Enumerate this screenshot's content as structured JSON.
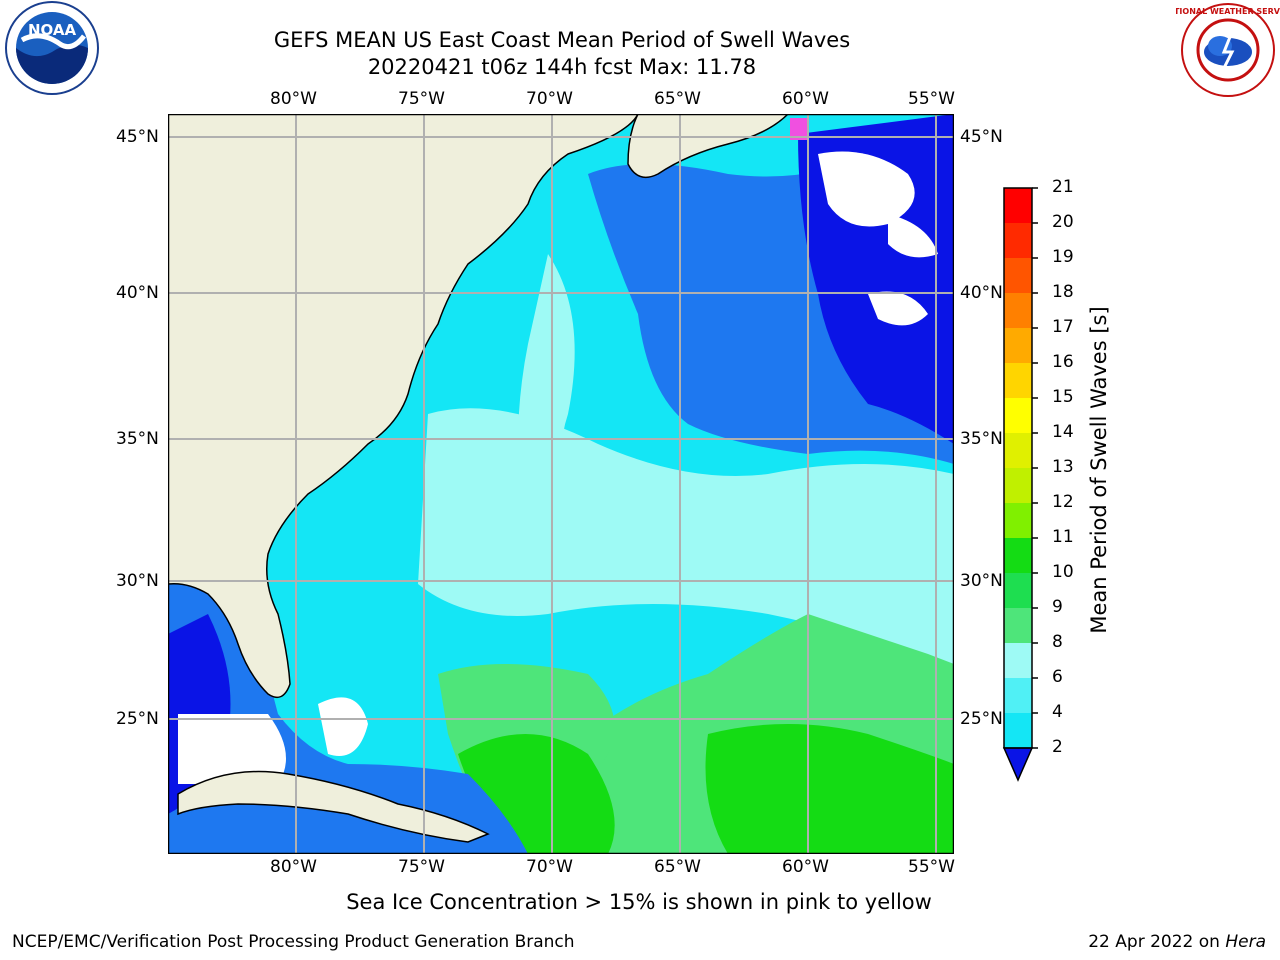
{
  "header": {
    "title_line1": "GEFS MEAN US East Coast Mean Period of Swell Waves",
    "title_line2": "20220421 t06z 144h fcst   Max: 11.78"
  },
  "logos": {
    "left": {
      "name": "noaa-logo",
      "text": "NOAA"
    },
    "right": {
      "name": "nws-logo",
      "text": "NATIONAL WEATHER SERVICE"
    }
  },
  "map": {
    "lon_labels_top": [
      "80°W",
      "75°W",
      "70°W",
      "65°W",
      "60°W",
      "55°W"
    ],
    "lon_labels_bottom": [
      "80°W",
      "75°W",
      "70°W",
      "65°W",
      "60°W",
      "55°W"
    ],
    "lat_labels_left": [
      "45°N",
      "40°N",
      "35°N",
      "30°N",
      "25°N"
    ],
    "lat_labels_right": [
      "45°N",
      "40°N",
      "35°N",
      "30°N",
      "25°N"
    ],
    "colors": {
      "land": "#efefdc",
      "grid": "#b0b0b0",
      "dark_blue": "#0a14e6",
      "blue": "#1e78f0",
      "cyan": "#14e6f5",
      "light_cyan": "#9efaf5",
      "light_green": "#4ee57a",
      "green": "#14dc14",
      "ice_pink": "#f050e0"
    }
  },
  "colorbar": {
    "label": "Mean Period of Swell Waves [s]",
    "ticks": [
      "21",
      "20",
      "19",
      "18",
      "17",
      "16",
      "15",
      "14",
      "13",
      "12",
      "11",
      "10",
      "9",
      "8",
      "6",
      "4",
      "2"
    ],
    "colors": [
      "#ff0000",
      "#ff2a00",
      "#ff5500",
      "#ff8000",
      "#ffaa00",
      "#ffd500",
      "#ffff00",
      "#e0f000",
      "#c0f000",
      "#80f000",
      "#14dc14",
      "#1ede50",
      "#4ee57a",
      "#9efaf5",
      "#50f0f5",
      "#14e6f5",
      "#1e78f0",
      "#0a14e6"
    ]
  },
  "footer": {
    "note": "Sea Ice Concentration > 15% is shown in pink to yellow",
    "credit": "NCEP/EMC/Verification Post Processing Product Generation Branch",
    "date": "22 Apr 2022 on ",
    "host": "Hera"
  }
}
